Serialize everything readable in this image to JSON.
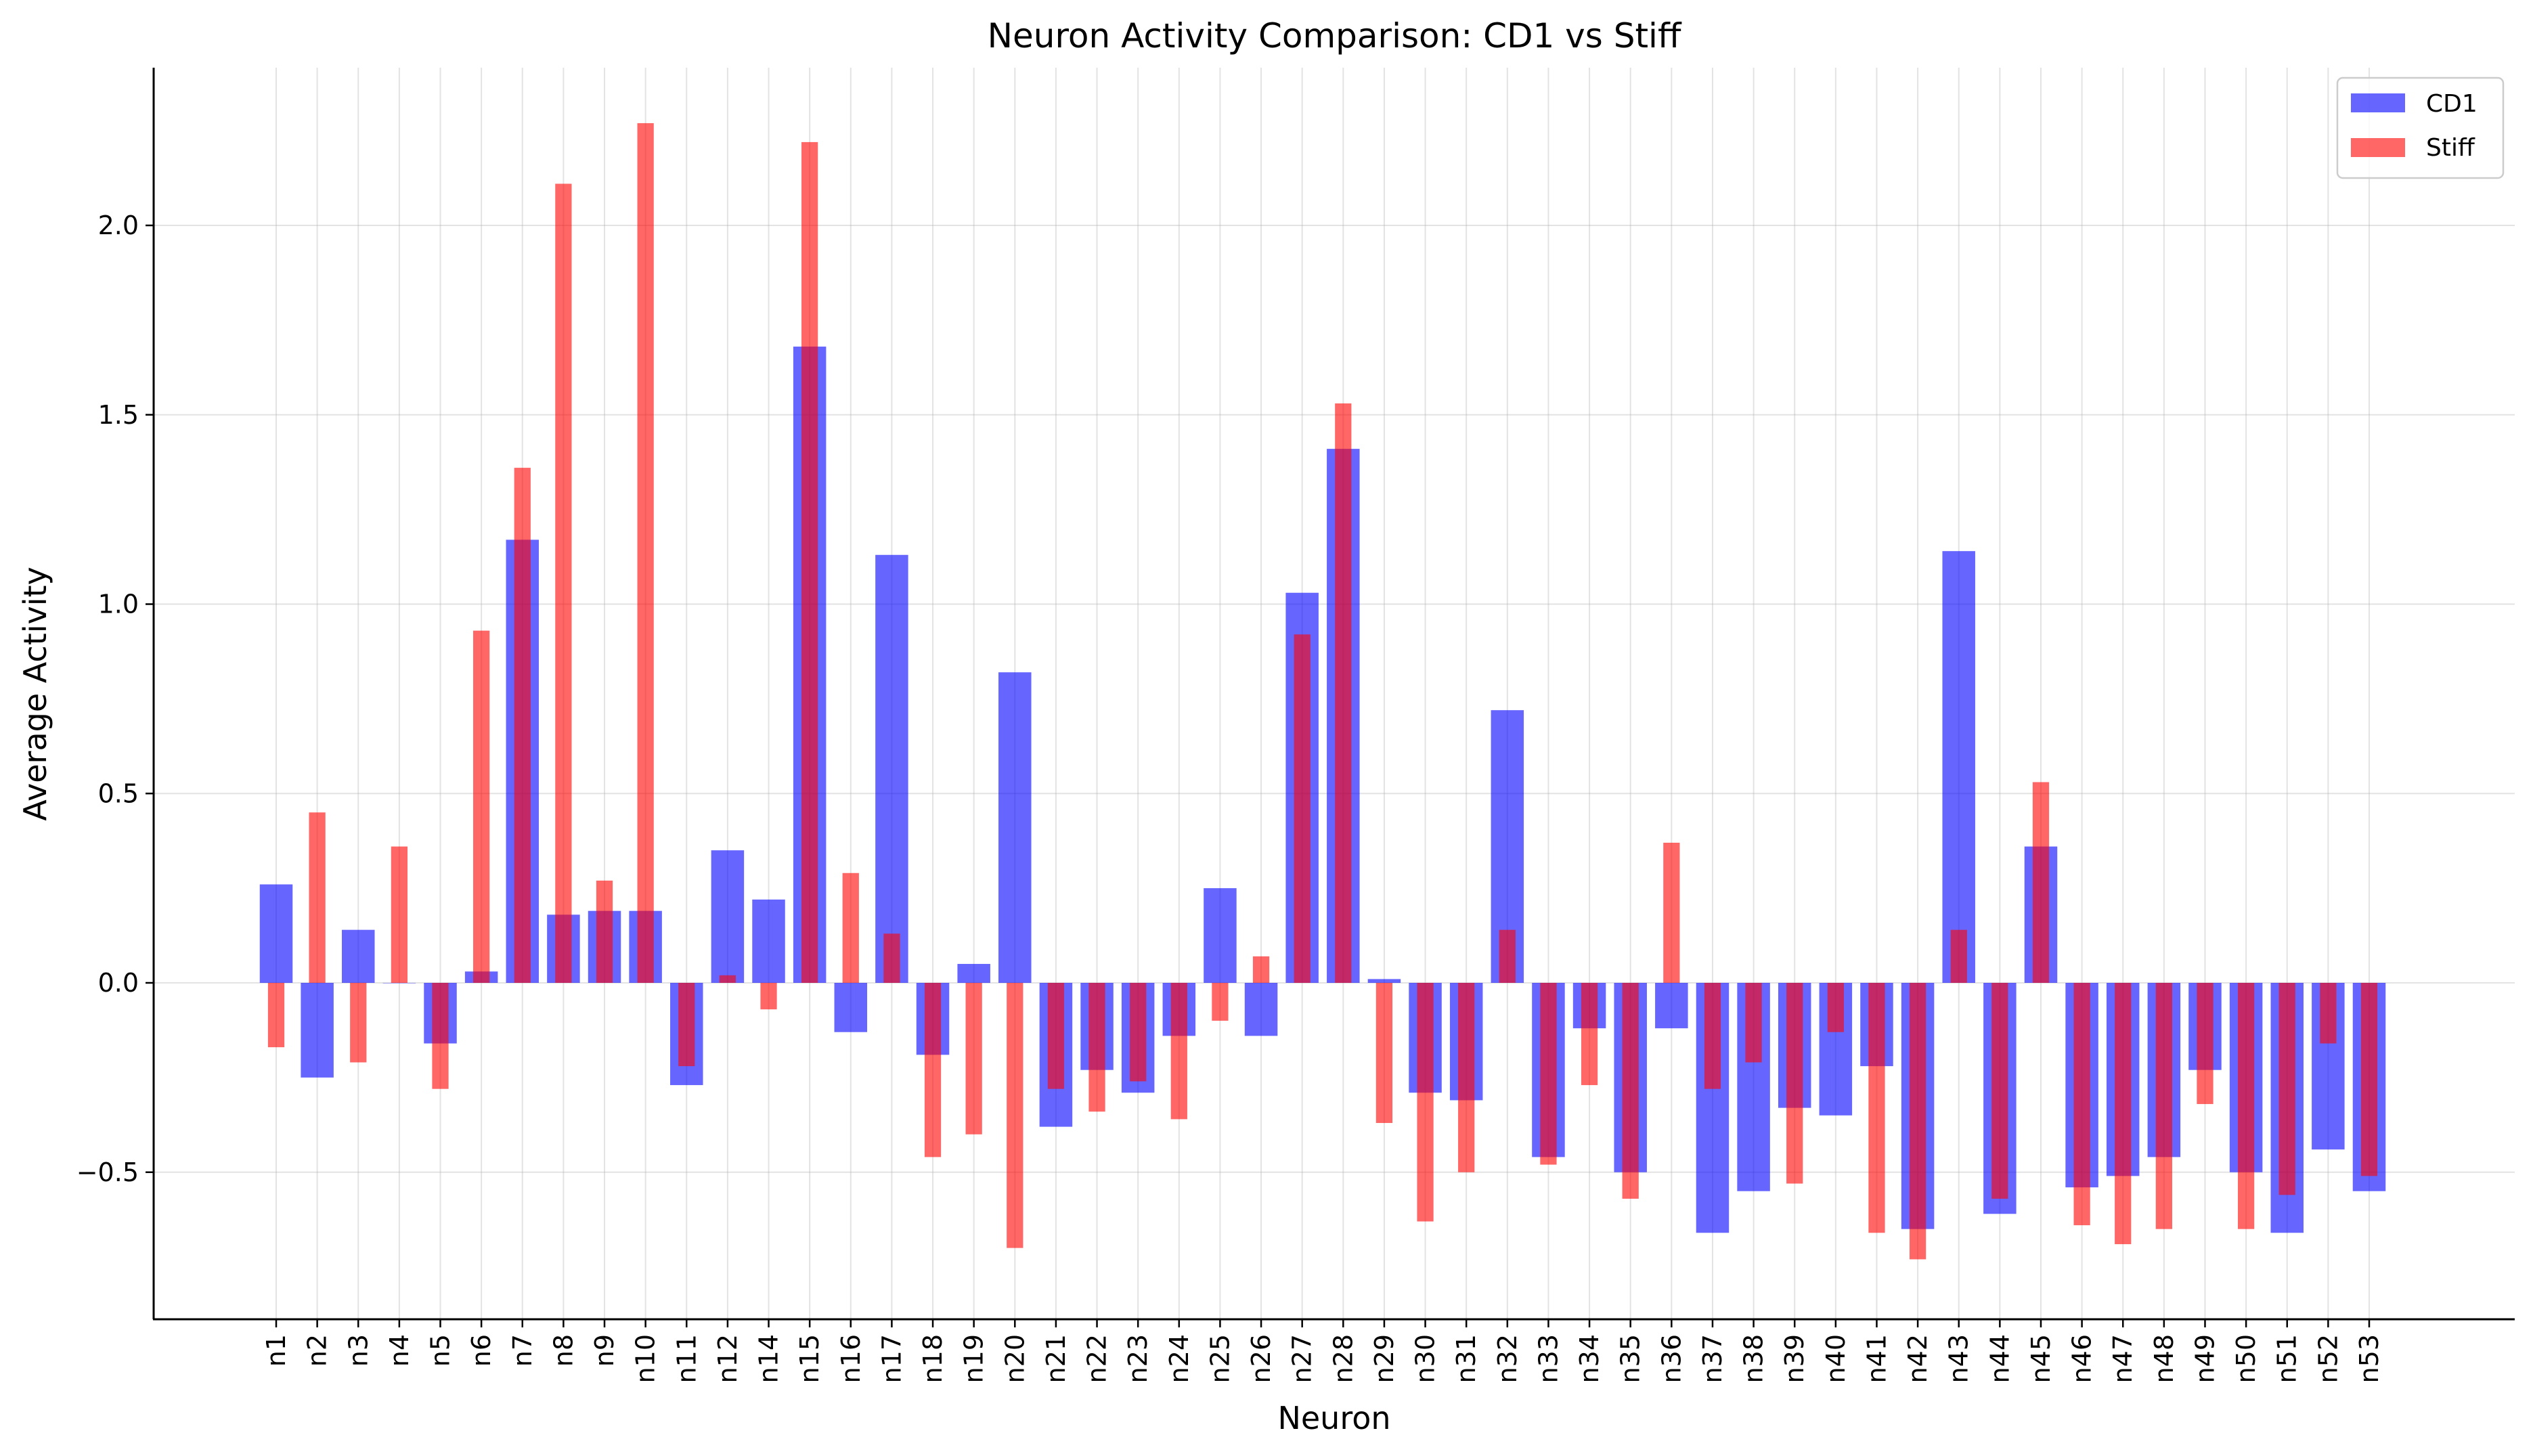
{
  "chart_data": {
    "type": "bar",
    "title": "Neuron Activity Comparison: CD1 vs Stiff",
    "xlabel": "Neuron",
    "ylabel": "Average Activity",
    "ylim": [
      -0.89,
      2.42
    ],
    "yticks": [
      -0.5,
      0.0,
      0.5,
      1.0,
      1.5,
      2.0
    ],
    "ytick_labels": [
      "−0.5",
      "0.0",
      "0.5",
      "1.0",
      "1.5",
      "2.0"
    ],
    "grid": true,
    "legend_position": "top-right",
    "categories": [
      "n1",
      "n2",
      "n3",
      "n4",
      "n5",
      "n6",
      "n7",
      "n8",
      "n9",
      "n10",
      "n11",
      "n12",
      "n14",
      "n15",
      "n16",
      "n17",
      "n18",
      "n19",
      "n20",
      "n21",
      "n22",
      "n23",
      "n24",
      "n25",
      "n26",
      "n27",
      "n28",
      "n29",
      "n30",
      "n31",
      "n32",
      "n33",
      "n34",
      "n35",
      "n36",
      "n37",
      "n38",
      "n39",
      "n40",
      "n41",
      "n42",
      "n43",
      "n44",
      "n45",
      "n46",
      "n47",
      "n48",
      "n49",
      "n50",
      "n51",
      "n52",
      "n53"
    ],
    "series": [
      {
        "name": "CD1",
        "color": "#0000ff",
        "opacity": 0.6,
        "values": [
          0.26,
          -0.25,
          0.14,
          0.0,
          -0.16,
          0.03,
          1.17,
          0.18,
          0.19,
          0.19,
          -0.27,
          0.35,
          0.22,
          1.68,
          -0.13,
          1.13,
          -0.19,
          0.05,
          0.82,
          -0.38,
          -0.23,
          -0.29,
          -0.14,
          0.25,
          -0.14,
          1.03,
          1.41,
          0.01,
          -0.29,
          -0.31,
          0.72,
          -0.46,
          -0.12,
          -0.5,
          -0.12,
          -0.66,
          -0.55,
          -0.33,
          -0.35,
          -0.22,
          -0.65,
          1.14,
          -0.61,
          0.36,
          -0.54,
          -0.51,
          -0.46,
          -0.23,
          -0.5,
          -0.66,
          -0.44,
          -0.55
        ]
      },
      {
        "name": "Stiff",
        "color": "#ff0000",
        "opacity": 0.6,
        "values": [
          -0.17,
          0.45,
          -0.21,
          0.36,
          -0.28,
          0.93,
          1.36,
          2.11,
          0.27,
          2.27,
          -0.22,
          0.02,
          -0.07,
          2.22,
          0.29,
          0.13,
          -0.46,
          -0.4,
          -0.7,
          -0.28,
          -0.34,
          -0.26,
          -0.36,
          -0.1,
          0.07,
          0.92,
          1.53,
          -0.37,
          -0.63,
          -0.5,
          0.14,
          -0.48,
          -0.27,
          -0.57,
          0.37,
          -0.28,
          -0.21,
          -0.53,
          -0.13,
          -0.66,
          -0.73,
          0.14,
          -0.57,
          0.53,
          -0.64,
          -0.69,
          -0.65,
          -0.32,
          -0.65,
          -0.56,
          -0.16,
          -0.51
        ]
      }
    ]
  }
}
